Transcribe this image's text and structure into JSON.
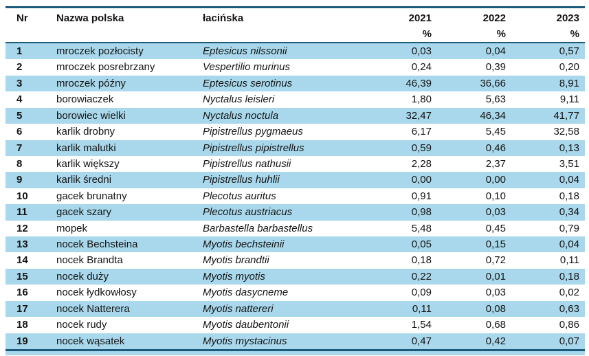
{
  "colors": {
    "stripe": "#A9D8EC",
    "border": "#1B5A7A",
    "text": "#141414"
  },
  "table": {
    "header": {
      "nr": "Nr",
      "polish": "Nazwa polska",
      "latin": "łacińska",
      "unit": "%",
      "years": [
        "2021",
        "2022",
        "2023"
      ]
    },
    "rows": [
      {
        "nr": "1",
        "polish": "mroczek pozłocisty",
        "latin": "Eptesicus nilssonii",
        "y2021": "0,03",
        "y2022": "0,04",
        "y2023": "0,57"
      },
      {
        "nr": "2",
        "polish": "mroczek posrebrzany",
        "latin": "Vespertilio murinus",
        "y2021": "0,24",
        "y2022": "0,39",
        "y2023": "0,20"
      },
      {
        "nr": "3",
        "polish": "mroczek późny",
        "latin": "Eptesicus serotinus",
        "y2021": "46,39",
        "y2022": "36,66",
        "y2023": "8,91"
      },
      {
        "nr": "4",
        "polish": "borowiaczek",
        "latin": "Nyctalus leisleri",
        "y2021": "1,80",
        "y2022": "5,63",
        "y2023": "9,11"
      },
      {
        "nr": "5",
        "polish": "borowiec wielki",
        "latin": "Nyctalus noctula",
        "y2021": "32,47",
        "y2022": "46,34",
        "y2023": "41,77"
      },
      {
        "nr": "6",
        "polish": "karlik drobny",
        "latin": "Pipistrellus pygmaeus",
        "y2021": "6,17",
        "y2022": "5,45",
        "y2023": "32,58"
      },
      {
        "nr": "7",
        "polish": "karlik malutki",
        "latin": "Pipistrellus pipistrellus",
        "y2021": "0,59",
        "y2022": "0,46",
        "y2023": "0,13"
      },
      {
        "nr": "8",
        "polish": "karlik większy",
        "latin": "Pipistrellus nathusii",
        "y2021": "2,28",
        "y2022": "2,37",
        "y2023": "3,51"
      },
      {
        "nr": "9",
        "polish": "karlik średni",
        "latin": "Pipistrellus huhlii",
        "y2021": "0,00",
        "y2022": "0,00",
        "y2023": "0,04"
      },
      {
        "nr": "10",
        "polish": "gacek brunatny",
        "latin": "Plecotus auritus",
        "y2021": "0,91",
        "y2022": "0,10",
        "y2023": "0,18"
      },
      {
        "nr": "11",
        "polish": "gacek szary",
        "latin": "Plecotus austriacus",
        "y2021": "0,98",
        "y2022": "0,03",
        "y2023": "0,34"
      },
      {
        "nr": "12",
        "polish": "mopek",
        "latin": "Barbastella barbastellus",
        "y2021": "5,48",
        "y2022": "0,45",
        "y2023": "0,79"
      },
      {
        "nr": "13",
        "polish": "nocek Bechsteina",
        "latin": "Myotis bechsteinii",
        "y2021": "0,05",
        "y2022": "0,15",
        "y2023": "0,04"
      },
      {
        "nr": "14",
        "polish": "nocek Brandta",
        "latin": "Myotis brandtii",
        "y2021": "0,18",
        "y2022": "0,72",
        "y2023": "0,11"
      },
      {
        "nr": "15",
        "polish": "nocek duży",
        "latin": "Myotis myotis",
        "y2021": "0,22",
        "y2022": "0,01",
        "y2023": "0,18"
      },
      {
        "nr": "16",
        "polish": "nocek łydkowłosy",
        "latin": "Myotis dasycneme",
        "y2021": "0,09",
        "y2022": "0,03",
        "y2023": "0,02"
      },
      {
        "nr": "17",
        "polish": "nocek Natterera",
        "latin": "Myotis nattereri",
        "y2021": "0,11",
        "y2022": "0,08",
        "y2023": "0,63"
      },
      {
        "nr": "18",
        "polish": "nocek rudy",
        "latin": "Myotis daubentonii",
        "y2021": "1,54",
        "y2022": "0,68",
        "y2023": "0,86"
      },
      {
        "nr": "19",
        "polish": "nocek wąsatek",
        "latin": "Myotis mystacinus",
        "y2021": "0,47",
        "y2022": "0,42",
        "y2023": "0,07"
      }
    ]
  }
}
